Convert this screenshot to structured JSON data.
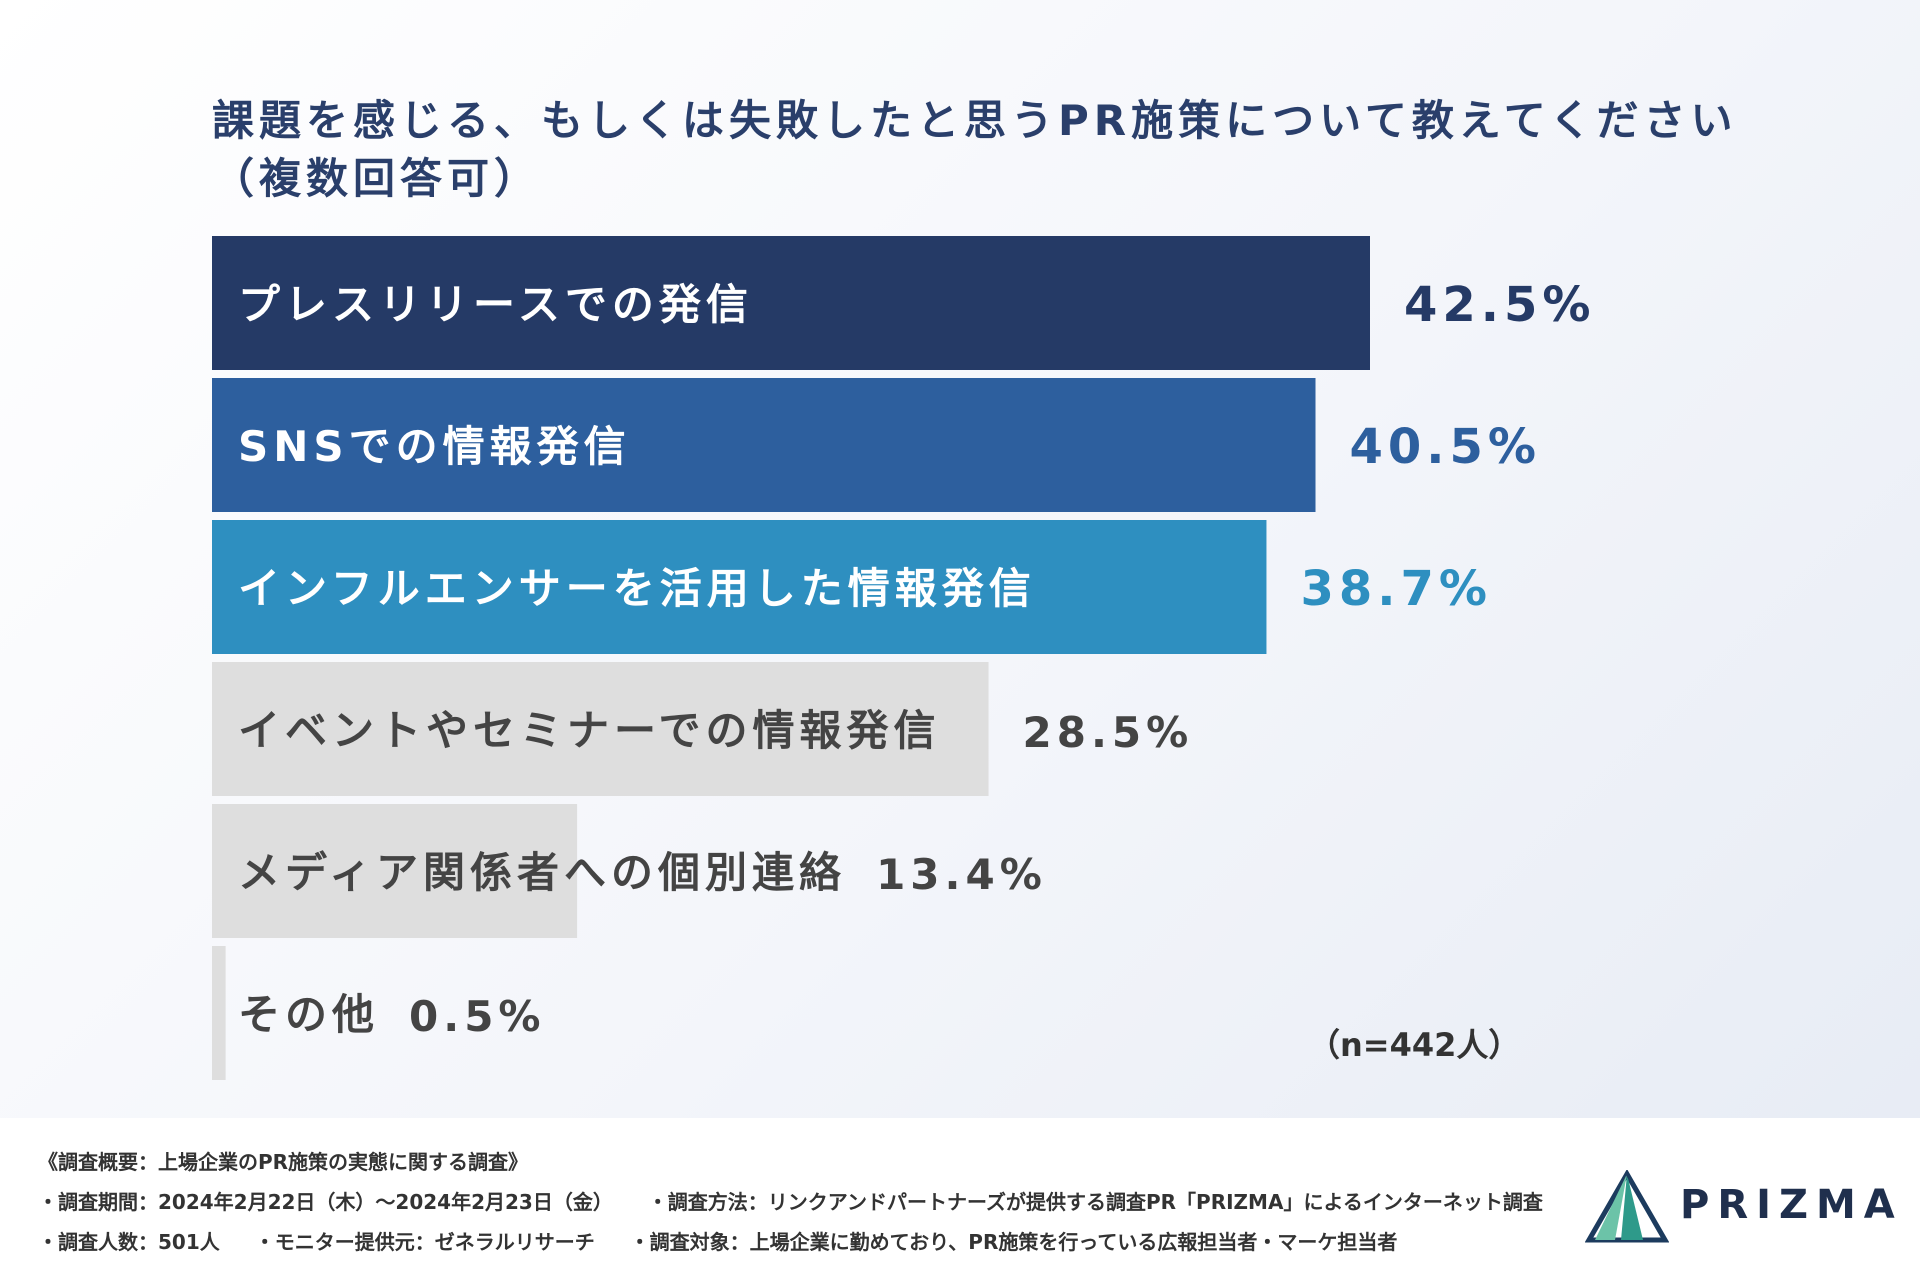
{
  "title_lines": [
    "課題を感じる、もしくは失敗したと思うPR施策について教えてください",
    "（複数回答可）"
  ],
  "chart_data": {
    "type": "bar",
    "orientation": "horizontal",
    "unit": "%",
    "categories": [
      "プレスリリースでの発信",
      "SNSでの情報発信",
      "インフルエンサーを活用した情報発信",
      "イベントやセミナーでの情報発信",
      "メディア関係者への個別連絡",
      "その他"
    ],
    "values": [
      42.5,
      40.5,
      38.7,
      28.5,
      13.4,
      0.5
    ],
    "value_labels": [
      "42.5%",
      "40.5%",
      "38.7%",
      "28.5%",
      "13.4%",
      "0.5%"
    ],
    "colors": [
      "#253a66",
      "#2d5f9e",
      "#2e8fc0",
      "#dedede",
      "#dedede",
      "#dedede"
    ],
    "label_colors": [
      "#ffffff",
      "#ffffff",
      "#ffffff",
      "#444444",
      "#444444",
      "#444444"
    ],
    "value_colors": [
      "#253a66",
      "#2d5f9e",
      "#2e8fc0",
      "#444444",
      "#444444",
      "#444444"
    ],
    "grid": false,
    "legend": "none"
  },
  "sample_size": "（n=442人）",
  "footer": {
    "heading": "《調査概要：上場企業のPR施策の実態に関する調査》",
    "period": "・調査期間：2024年2月22日（木）〜2024年2月23日（金）",
    "method": "・調査方法：リンクアンドパートナーズが提供する調査PR「PRIZMA」によるインターネット調査",
    "count": "・調査人数：501人",
    "monitor": "・モニター提供元：ゼネラルリサーチ",
    "target": "・調査対象：上場企業に勤めており、PR施策を行っている広報担当者・マーケ担当者"
  },
  "logo": {
    "text": "PRIZMA",
    "colors": [
      "#1c3b5e",
      "#2e9a8a",
      "#6cc3a8"
    ]
  }
}
